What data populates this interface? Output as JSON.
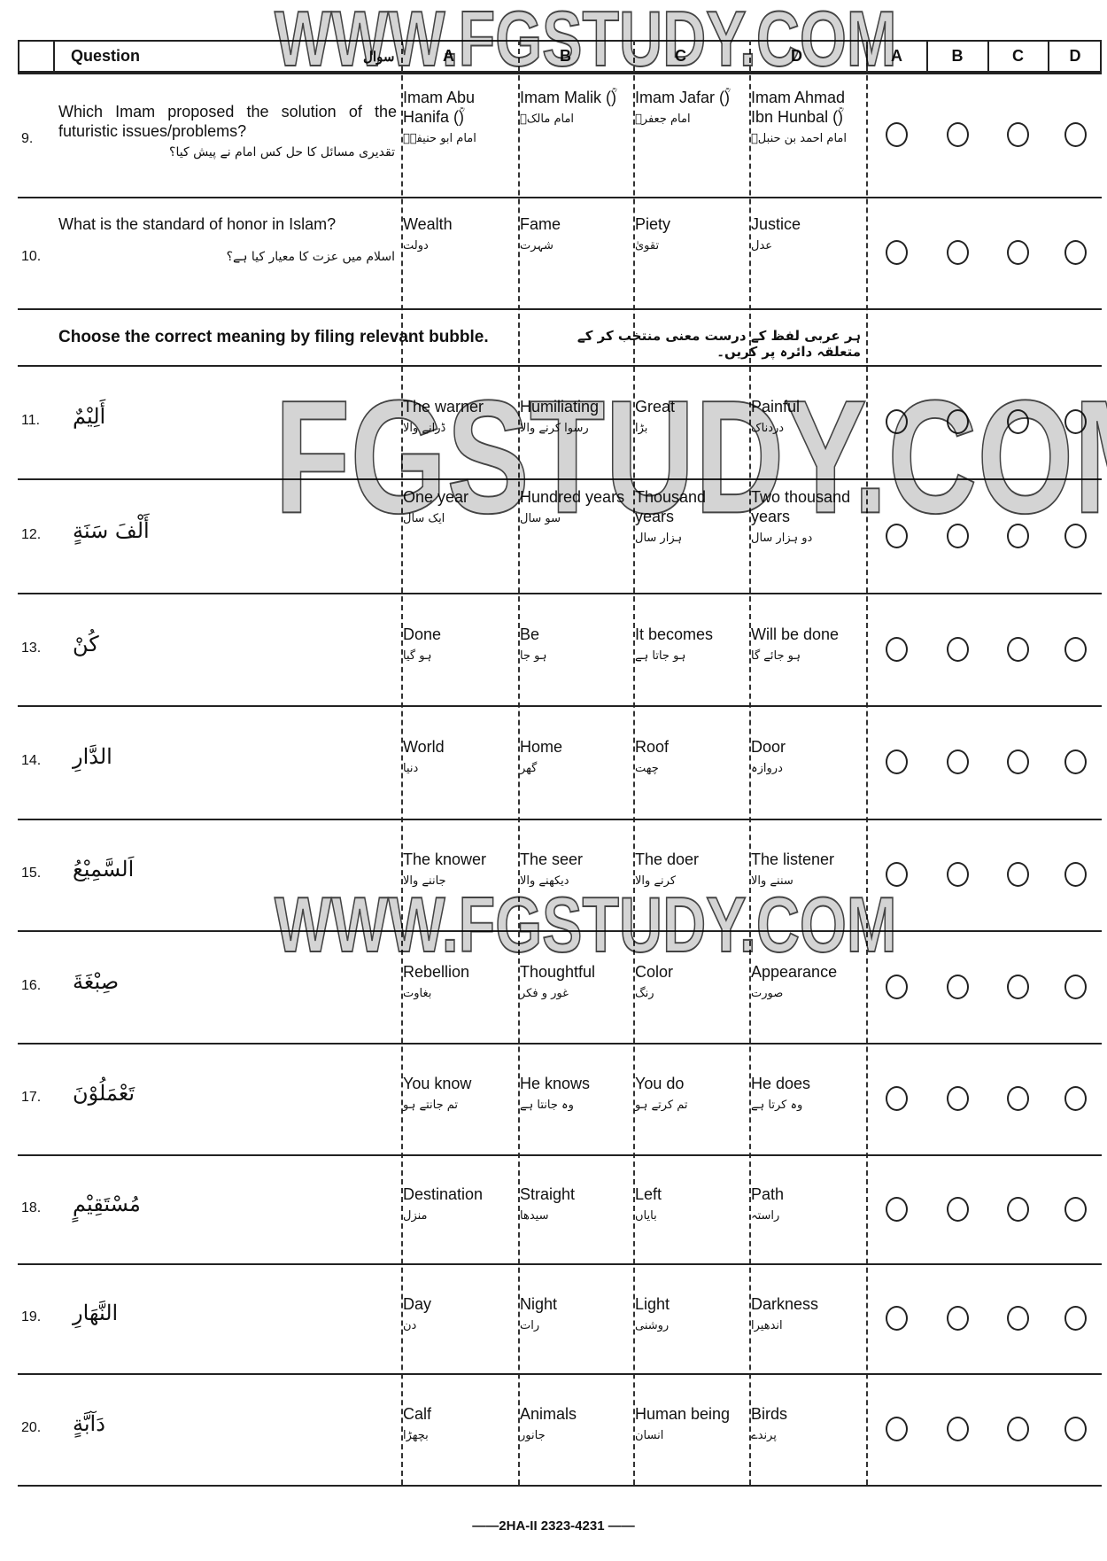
{
  "header": {
    "question": "Question",
    "question_ur": "سوال",
    "options": [
      "A",
      "B",
      "C",
      "D"
    ],
    "answers": [
      "A",
      "B",
      "C",
      "D"
    ]
  },
  "questions": [
    {
      "num": "9.",
      "en": "Which Imam proposed the solution of the futuristic issues/problems?",
      "ur": "تقدیری مسائل کا حل کس امام نے پیش کیا؟",
      "options": [
        {
          "en": "Imam Abu Hanifa (ؒ)",
          "ur": "امام ابو حنیفہؒ"
        },
        {
          "en": "Imam Malik (ؒ)",
          "ur": "امام مالکؒ"
        },
        {
          "en": "Imam Jafar (ؒ)",
          "ur": "امام جعفرؒ"
        },
        {
          "en": "Imam Ahmad Ibn Hunbal (ؒ)",
          "ur": "امام احمد بن حنبلؒ"
        }
      ]
    },
    {
      "num": "10.",
      "en": "What is the standard of honor in Islam?",
      "ur": "اسلام میں عزت کا معیار کیا ہے؟",
      "options": [
        {
          "en": "Wealth",
          "ur": "دولت"
        },
        {
          "en": "Fame",
          "ur": "شہرت"
        },
        {
          "en": "Piety",
          "ur": "تقویٰ"
        },
        {
          "en": "Justice",
          "ur": "عدل"
        }
      ]
    }
  ],
  "instruction": {
    "en": "Choose the correct meaning by filing relevant bubble.",
    "ur": "ہر عربی لفظ کے درست معنی منتخب کر کے متعلقہ دائرہ پر کریں۔"
  },
  "words": [
    {
      "num": "11.",
      "arabic": "أَلِيْمٌ",
      "options": [
        {
          "en": "The warner",
          "ur": "ڈرانے والا"
        },
        {
          "en": "Humiliating",
          "ur": "رسوا کرنے والا"
        },
        {
          "en": "Great",
          "ur": "بڑا"
        },
        {
          "en": "Painful",
          "ur": "دردناک"
        }
      ]
    },
    {
      "num": "12.",
      "arabic": "أَلْفَ سَنَةٍ",
      "options": [
        {
          "en": "One year",
          "ur": "ایک سال"
        },
        {
          "en": "Hundred years",
          "ur": "سو سال"
        },
        {
          "en": "Thousand years",
          "ur": "ہزار سال"
        },
        {
          "en": "Two thousand years",
          "ur": "دو ہزار سال"
        }
      ]
    },
    {
      "num": "13.",
      "arabic": "كُنْ",
      "options": [
        {
          "en": "Done",
          "ur": "ہو گیا"
        },
        {
          "en": "Be",
          "ur": "ہو جا"
        },
        {
          "en": "It becomes",
          "ur": "ہو جاتا ہے"
        },
        {
          "en": "Will be done",
          "ur": "ہو جائے گا"
        }
      ]
    },
    {
      "num": "14.",
      "arabic": "الدَّارِ",
      "options": [
        {
          "en": "World",
          "ur": "دنیا"
        },
        {
          "en": "Home",
          "ur": "گھر"
        },
        {
          "en": "Roof",
          "ur": "چھت"
        },
        {
          "en": "Door",
          "ur": "دروازہ"
        }
      ]
    },
    {
      "num": "15.",
      "arabic": "اَلسَّمِيْعُ",
      "options": [
        {
          "en": "The knower",
          "ur": "جاننے والا"
        },
        {
          "en": "The seer",
          "ur": "دیکھنے والا"
        },
        {
          "en": "The doer",
          "ur": "کرنے والا"
        },
        {
          "en": "The listener",
          "ur": "سننے والا"
        }
      ]
    },
    {
      "num": "16.",
      "arabic": "صِبْغَةَ",
      "options": [
        {
          "en": "Rebellion",
          "ur": "بغاوت"
        },
        {
          "en": "Thoughtful",
          "ur": "غور و فکر"
        },
        {
          "en": "Color",
          "ur": "رنگ"
        },
        {
          "en": "Appearance",
          "ur": "صورت"
        }
      ]
    },
    {
      "num": "17.",
      "arabic": "تَعْمَلُوْنَ",
      "options": [
        {
          "en": "You know",
          "ur": "تم جانتے ہو"
        },
        {
          "en": "He knows",
          "ur": "وہ جانتا ہے"
        },
        {
          "en": "You do",
          "ur": "تم کرتے ہو"
        },
        {
          "en": "He does",
          "ur": "وہ کرتا ہے"
        }
      ]
    },
    {
      "num": "18.",
      "arabic": "مُسْتَقِيْمٍ",
      "options": [
        {
          "en": "Destination",
          "ur": "منزل"
        },
        {
          "en": "Straight",
          "ur": "سیدھا"
        },
        {
          "en": "Left",
          "ur": "بایاں"
        },
        {
          "en": "Path",
          "ur": "راستہ"
        }
      ]
    },
    {
      "num": "19.",
      "arabic": "النَّهَارِ",
      "options": [
        {
          "en": "Day",
          "ur": "دن"
        },
        {
          "en": "Night",
          "ur": "رات"
        },
        {
          "en": "Light",
          "ur": "روشنی"
        },
        {
          "en": "Darkness",
          "ur": "اندھیرا"
        }
      ]
    },
    {
      "num": "20.",
      "arabic": "دَآبَّةٍ",
      "options": [
        {
          "en": "Calf",
          "ur": "بچھڑا"
        },
        {
          "en": "Animals",
          "ur": "جانور"
        },
        {
          "en": "Human being",
          "ur": "انسان"
        },
        {
          "en": "Birds",
          "ur": "پرندے"
        }
      ]
    }
  ],
  "watermarks": {
    "top": "WWW.FGSTUDY.COM",
    "center": "FGSTUDY.COM",
    "middle": "WWW.FGSTUDY.COM"
  },
  "footer": "——2HA-II 2323-4231 ——"
}
